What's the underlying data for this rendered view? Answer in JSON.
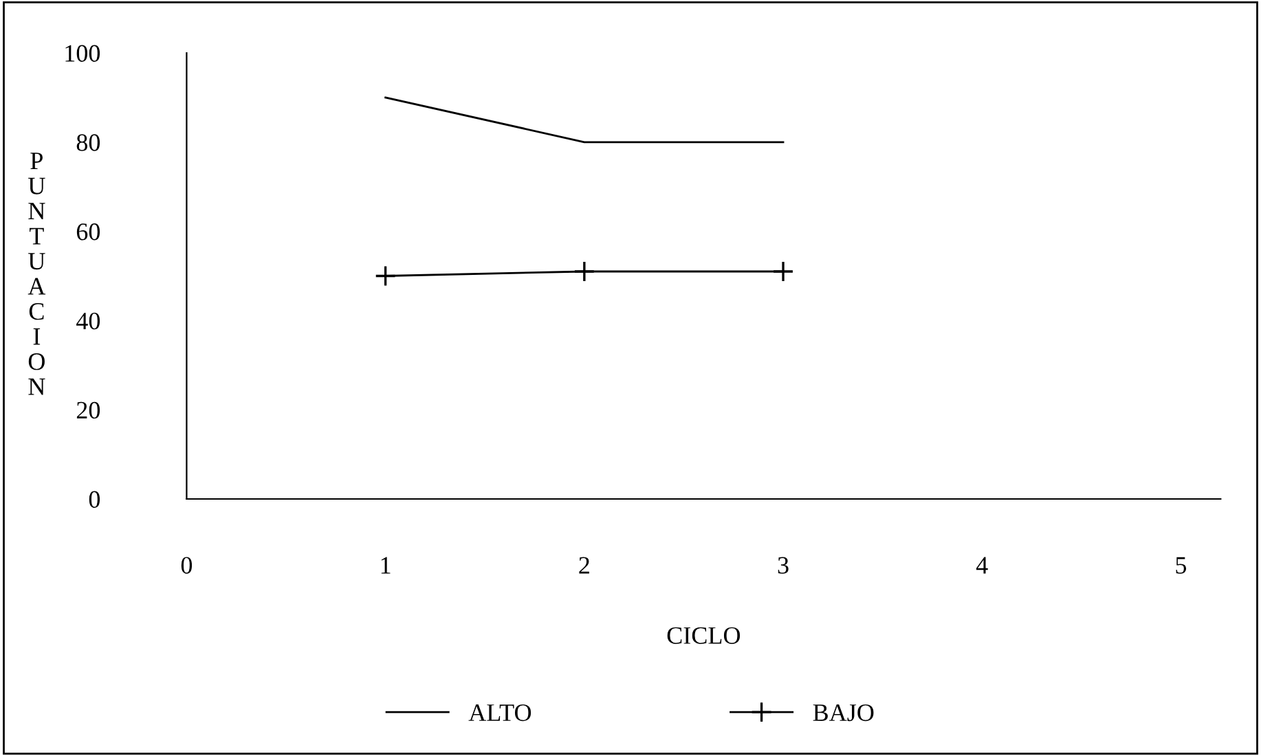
{
  "chart_data": {
    "type": "line",
    "xlabel": "CICLO",
    "ylabel": "PUNTUACION",
    "x": [
      1,
      2,
      3
    ],
    "series": [
      {
        "name": "ALTO",
        "color": "#000000",
        "values": [
          90,
          80,
          80
        ],
        "marker": "none"
      },
      {
        "name": "BAJO",
        "color": "#000000",
        "values": [
          50,
          51,
          51
        ],
        "marker": "cross"
      }
    ],
    "xlim": [
      0,
      5.2
    ],
    "xticks": [
      0,
      1,
      2,
      3,
      4,
      5
    ],
    "ylim": [
      0,
      100
    ],
    "yticks": [
      0,
      20,
      40,
      60,
      80,
      100
    ],
    "grid": false,
    "legend": "bottom"
  }
}
